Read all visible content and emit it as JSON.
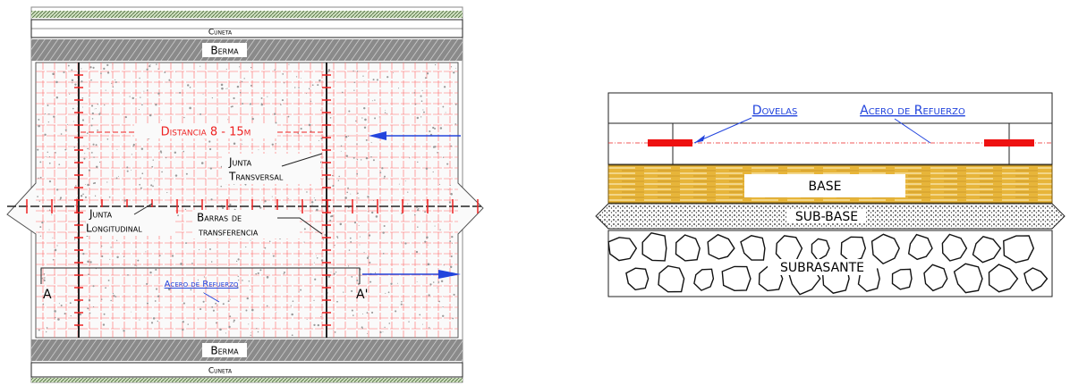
{
  "plan": {
    "top_label": "Cuneta",
    "top_berma": "Berma",
    "distance": "Distancia 8 - 15m",
    "transverse_joint": [
      "Junta",
      "Transversal"
    ],
    "longitudinal_joint": [
      "Junta",
      "Longitudinal"
    ],
    "transfer_bars": [
      "Barras de",
      "transferencia"
    ],
    "section_start": "A",
    "section_end": "A'",
    "reinforcement": "Acero de Refuerzo",
    "bottom_berma": "Berma",
    "bottom_label": "Cuneta"
  },
  "section": {
    "dowels": "Dovelas",
    "reinforcement": "Acero de Refuerzo",
    "base": "BASE",
    "sub_base": "SUB-BASE",
    "subgrade": "SUBRASANTE"
  }
}
